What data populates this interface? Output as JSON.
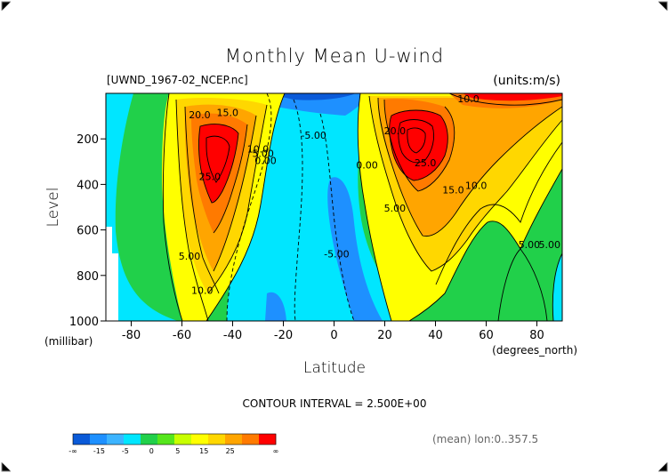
{
  "chart_data": {
    "type": "heatmap",
    "title": "Monthly Mean U-wind",
    "subtitle_left": "[UWND_1967-02_NCEP.nc]",
    "subtitle_right": "(units:m/s)",
    "xlabel": "Latitude",
    "x_unit": "(degrees_north)",
    "ylabel": "Level",
    "y_unit": "(millibar)",
    "xlim": [
      -90,
      90
    ],
    "ylim": [
      1000,
      0
    ],
    "x_ticks": [
      -80,
      -60,
      -40,
      -20,
      0,
      20,
      40,
      60,
      80
    ],
    "y_ticks": [
      200,
      400,
      600,
      800,
      1000
    ],
    "contour_interval_text": "CONTOUR INTERVAL = 2.500E+00",
    "footer_text": "(mean) lon:0..357.5",
    "contour_labels": [
      {
        "text": "20.0",
        "lat": -53,
        "level": 110
      },
      {
        "text": "15.0",
        "lat": -42,
        "level": 100
      },
      {
        "text": "25.0",
        "lat": -49,
        "level": 380
      },
      {
        "text": "10.0",
        "lat": -30,
        "level": 260
      },
      {
        "text": "5.00",
        "lat": -28,
        "level": 280
      },
      {
        "text": "0.00",
        "lat": -27,
        "level": 310
      },
      {
        "text": "5.00",
        "lat": -57,
        "level": 730
      },
      {
        "text": "10.0",
        "lat": -52,
        "level": 880
      },
      {
        "text": "-5.00",
        "lat": -8,
        "level": 200
      },
      {
        "text": "0.00",
        "lat": 13,
        "level": 330
      },
      {
        "text": "20.0",
        "lat": 24,
        "level": 180
      },
      {
        "text": "25.0",
        "lat": 36,
        "level": 320
      },
      {
        "text": "10.0",
        "lat": 53,
        "level": 40
      },
      {
        "text": "15.0",
        "lat": 47,
        "level": 440
      },
      {
        "text": "10.0",
        "lat": 56,
        "level": 420
      },
      {
        "text": "5.00",
        "lat": 24,
        "level": 520
      },
      {
        "text": "-5.00",
        "lat": 1,
        "level": 720
      },
      {
        "text": "5.00",
        "lat": 77,
        "level": 680
      },
      {
        "text": "5.00",
        "lat": 85,
        "level": 680
      }
    ],
    "colorbar": {
      "labels": [
        "-∞",
        "-15",
        "-5",
        "0",
        "5",
        "15",
        "25",
        "∞"
      ],
      "colors": [
        "#0a5ad8",
        "#1e90ff",
        "#3cb4ff",
        "#00e6ff",
        "#21d04a",
        "#55e61c",
        "#c8ff00",
        "#ffff00",
        "#ffd700",
        "#ffa500",
        "#ff7a00",
        "#ff0000"
      ]
    },
    "level_colors": {
      "neg_strong": "#0a5ad8",
      "neg": "#1e90ff",
      "neg_weak": "#3cb4ff",
      "near_zero": "#00e6ff",
      "pos1": "#21d04a",
      "pos2": "#55e61c",
      "pos3": "#ffff00",
      "pos4": "#ffd700",
      "pos5": "#ffa500",
      "pos6": "#ff7a00",
      "pos7": "#ff0000"
    }
  }
}
